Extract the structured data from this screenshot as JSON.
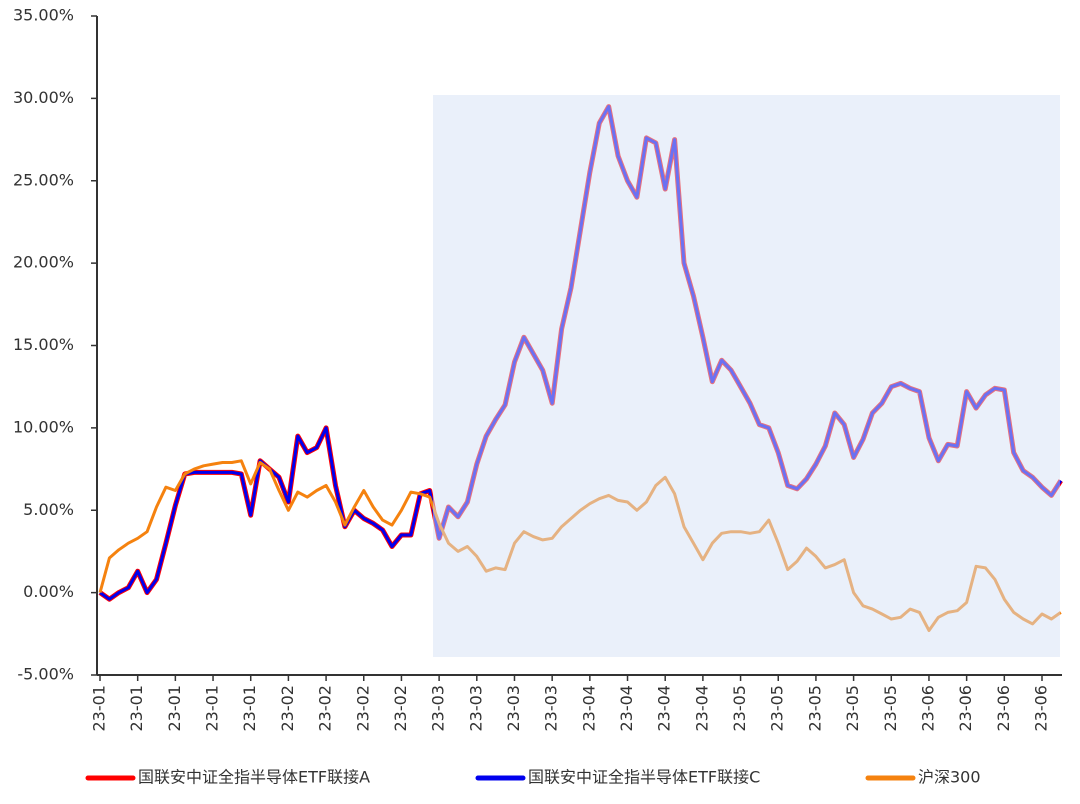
{
  "chart_data": {
    "type": "line",
    "categories": [
      "23-01",
      null,
      null,
      null,
      "23-01",
      null,
      null,
      null,
      "23-01",
      null,
      null,
      null,
      "23-01",
      null,
      null,
      null,
      "23-01",
      null,
      null,
      null,
      "23-02",
      null,
      null,
      null,
      "23-02",
      null,
      null,
      null,
      "23-02",
      null,
      null,
      null,
      "23-02",
      null,
      null,
      null,
      "23-03",
      null,
      null,
      null,
      "23-03",
      null,
      null,
      null,
      "23-03",
      null,
      null,
      null,
      "23-03",
      null,
      null,
      null,
      "23-04",
      null,
      null,
      null,
      "23-04",
      null,
      null,
      null,
      "23-04",
      null,
      null,
      null,
      "23-04",
      null,
      null,
      null,
      "23-05",
      null,
      null,
      null,
      "23-05",
      null,
      null,
      null,
      "23-05",
      null,
      null,
      null,
      "23-05",
      null,
      null,
      null,
      "23-05",
      null,
      null,
      null,
      "23-06",
      null,
      null,
      null,
      "23-06",
      null,
      null,
      null,
      "23-06",
      null,
      null,
      null,
      "23-06",
      null,
      null
    ],
    "series": [
      {
        "name": "国联安中证全指半导体ETF联接A",
        "color": "#ff0000",
        "values": [
          0,
          -0.4,
          0,
          0.3,
          1.3,
          0,
          0.8,
          3,
          5.3,
          7.2,
          7.3,
          7.3,
          7.3,
          7.3,
          7.3,
          7.2,
          4.7,
          8,
          7.5,
          7,
          5.5,
          9.5,
          8.5,
          8.8,
          10,
          6.5,
          4,
          5,
          4.5,
          4.2,
          3.8,
          2.8,
          3.5,
          3.5,
          6,
          6.2,
          3.3,
          5.2,
          4.6,
          5.5,
          7.8,
          9.5,
          10.5,
          11.4,
          14,
          15.5,
          14.5,
          13.5,
          11.5,
          16,
          18.5,
          22,
          25.5,
          28.5,
          29.5,
          26.5,
          25,
          24,
          27.6,
          27.3,
          24.5,
          27.5,
          20,
          18,
          15.5,
          12.8,
          14.1,
          13.5,
          12.5,
          11.5,
          10.2,
          10,
          8.5,
          6.5,
          6.3,
          6.9,
          7.8,
          8.9,
          10.9,
          10.2,
          8.2,
          9.3,
          10.9,
          11.5,
          12.5,
          12.7,
          12.4,
          12.2,
          9.4,
          8,
          9,
          8.9,
          12.2,
          11.2,
          12,
          12.4,
          12.3,
          8.5,
          7.4,
          7,
          6.4,
          5.9,
          6.8
        ]
      },
      {
        "name": "国联安中证全指半导体ETF联接C",
        "color": "#0000ee",
        "values": [
          0,
          -0.4,
          0,
          0.3,
          1.3,
          0,
          0.8,
          3,
          5.3,
          7.2,
          7.3,
          7.3,
          7.3,
          7.3,
          7.3,
          7.2,
          4.7,
          8,
          7.5,
          7,
          5.5,
          9.5,
          8.5,
          8.8,
          10,
          6.5,
          4,
          5,
          4.5,
          4.2,
          3.8,
          2.8,
          3.5,
          3.5,
          6,
          6.2,
          3.3,
          5.2,
          4.6,
          5.5,
          7.8,
          9.5,
          10.5,
          11.4,
          14,
          15.5,
          14.5,
          13.5,
          11.5,
          16,
          18.5,
          22,
          25.5,
          28.5,
          29.5,
          26.5,
          25,
          24,
          27.6,
          27.3,
          24.5,
          27.5,
          20,
          18,
          15.5,
          12.8,
          14.1,
          13.5,
          12.5,
          11.5,
          10.2,
          10,
          8.5,
          6.5,
          6.3,
          6.9,
          7.8,
          8.9,
          10.9,
          10.2,
          8.2,
          9.3,
          10.9,
          11.5,
          12.5,
          12.7,
          12.4,
          12.2,
          9.4,
          8,
          9,
          8.9,
          12.2,
          11.2,
          12,
          12.4,
          12.3,
          8.5,
          7.4,
          7,
          6.4,
          5.9,
          6.8
        ]
      },
      {
        "name": "沪深300",
        "color": "#f5820f",
        "values": [
          0,
          2.1,
          2.6,
          3,
          3.3,
          3.7,
          5.2,
          6.4,
          6.2,
          7.2,
          7.5,
          7.7,
          7.8,
          7.9,
          7.9,
          8,
          6.6,
          7.9,
          7.5,
          6.2,
          5,
          6.1,
          5.8,
          6.2,
          6.5,
          5.5,
          4.1,
          5.2,
          6.2,
          5.2,
          4.4,
          4.1,
          5,
          6.1,
          6,
          5.8,
          4.2,
          3,
          2.5,
          2.8,
          2.2,
          1.3,
          1.5,
          1.4,
          3,
          3.7,
          3.4,
          3.2,
          3.3,
          4,
          4.5,
          5,
          5.4,
          5.7,
          5.9,
          5.6,
          5.5,
          5,
          5.5,
          6.5,
          7,
          6,
          4,
          3,
          2,
          3,
          3.6,
          3.7,
          3.7,
          3.6,
          3.7,
          4.4,
          3,
          1.4,
          1.9,
          2.7,
          2.2,
          1.5,
          1.7,
          2,
          0,
          -0.8,
          -1,
          -1.3,
          -1.6,
          -1.5,
          -1,
          -1.2,
          -2.3,
          -1.5,
          -1.2,
          -1.1,
          -0.6,
          1.6,
          1.5,
          0.8,
          -0.4,
          -1.2,
          -1.6,
          -1.9,
          -1.3,
          -1.6,
          -1.2
        ]
      }
    ],
    "ylim": [
      -5,
      35
    ],
    "yticks": [
      {
        "value": -5,
        "label": "-5.00%"
      },
      {
        "value": 0,
        "label": "0.00%"
      },
      {
        "value": 5,
        "label": "5.00%"
      },
      {
        "value": 10,
        "label": "10.00%"
      },
      {
        "value": 15,
        "label": "15.00%"
      },
      {
        "value": 20,
        "label": "20.00%"
      },
      {
        "value": 25,
        "label": "25.00%"
      },
      {
        "value": 30,
        "label": "30.00%"
      },
      {
        "value": 35,
        "label": "35.00%"
      }
    ]
  }
}
